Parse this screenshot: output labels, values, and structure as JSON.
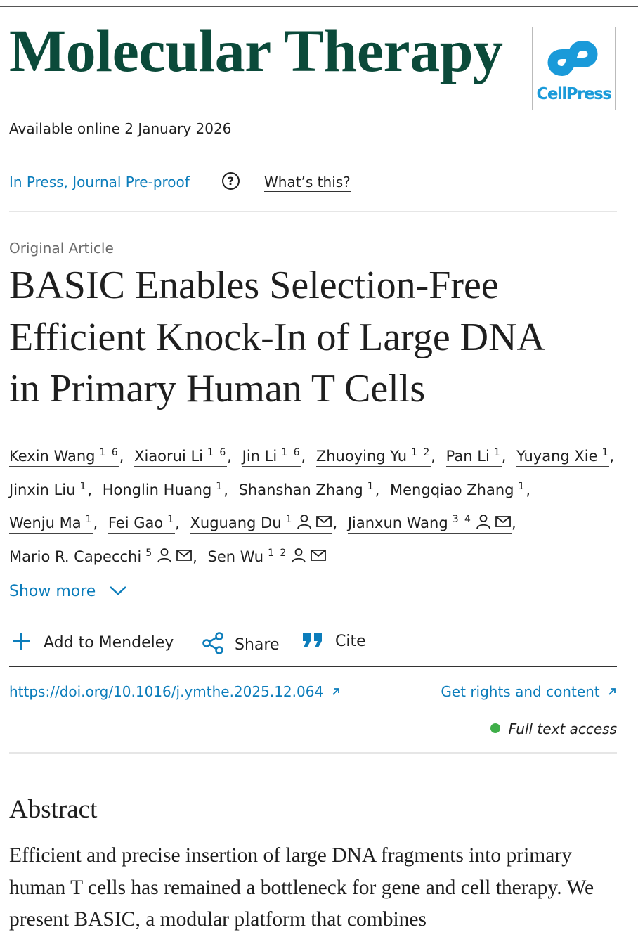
{
  "journal": {
    "title": "Molecular Therapy",
    "logo_text": "CellPress"
  },
  "availability": "Available online 2 January 2026",
  "status": {
    "label": "In Press, Journal Pre-proof",
    "help_icon": "?",
    "whats_this": "What’s this?"
  },
  "article": {
    "type": "Original Article",
    "title_lines": [
      "BASIC Enables Selection-Free",
      "Efficient Knock-In of Large DNA",
      "in Primary Human T Cells"
    ]
  },
  "author_separator": ",",
  "authors": [
    {
      "name": "Kexin Wang",
      "affiliations": "1 6",
      "corresponding": false
    },
    {
      "name": "Xiaorui Li",
      "affiliations": "1 6",
      "corresponding": false
    },
    {
      "name": "Jin Li",
      "affiliations": "1 6",
      "corresponding": false
    },
    {
      "name": "Zhuoying Yu",
      "affiliations": "1 2",
      "corresponding": false
    },
    {
      "name": "Pan Li",
      "affiliations": "1",
      "corresponding": false
    },
    {
      "name": "Yuyang Xie",
      "affiliations": "1",
      "corresponding": false
    },
    {
      "name": "Jinxin Liu",
      "affiliations": "1",
      "corresponding": false
    },
    {
      "name": "Honglin Huang",
      "affiliations": "1",
      "corresponding": false
    },
    {
      "name": "Shanshan Zhang",
      "affiliations": "1",
      "corresponding": false
    },
    {
      "name": "Mengqiao Zhang",
      "affiliations": "1",
      "corresponding": false
    },
    {
      "name": "Wenju Ma",
      "affiliations": "1",
      "corresponding": false
    },
    {
      "name": "Fei Gao",
      "affiliations": "1",
      "corresponding": false
    },
    {
      "name": "Xuguang Du",
      "affiliations": "1",
      "corresponding": true
    },
    {
      "name": "Jianxun Wang",
      "affiliations": "3 4",
      "corresponding": true
    },
    {
      "name": "Mario R. Capecchi",
      "affiliations": "5",
      "corresponding": true
    },
    {
      "name": "Sen Wu",
      "affiliations": "1 2",
      "corresponding": true
    }
  ],
  "show_more": "Show more",
  "actions": {
    "mendeley": "Add to Mendeley",
    "share": "Share",
    "cite": "Cite"
  },
  "doi": "https://doi.org/10.1016/j.ymthe.2025.12.064",
  "rights": "Get rights and content",
  "access": "Full text access",
  "abstract": {
    "heading": "Abstract",
    "text": "Efficient and precise insertion of large DNA fragments into primary human T cells has remained a bottleneck for gene and cell therapy. We present BASIC, a modular platform that combines"
  }
}
